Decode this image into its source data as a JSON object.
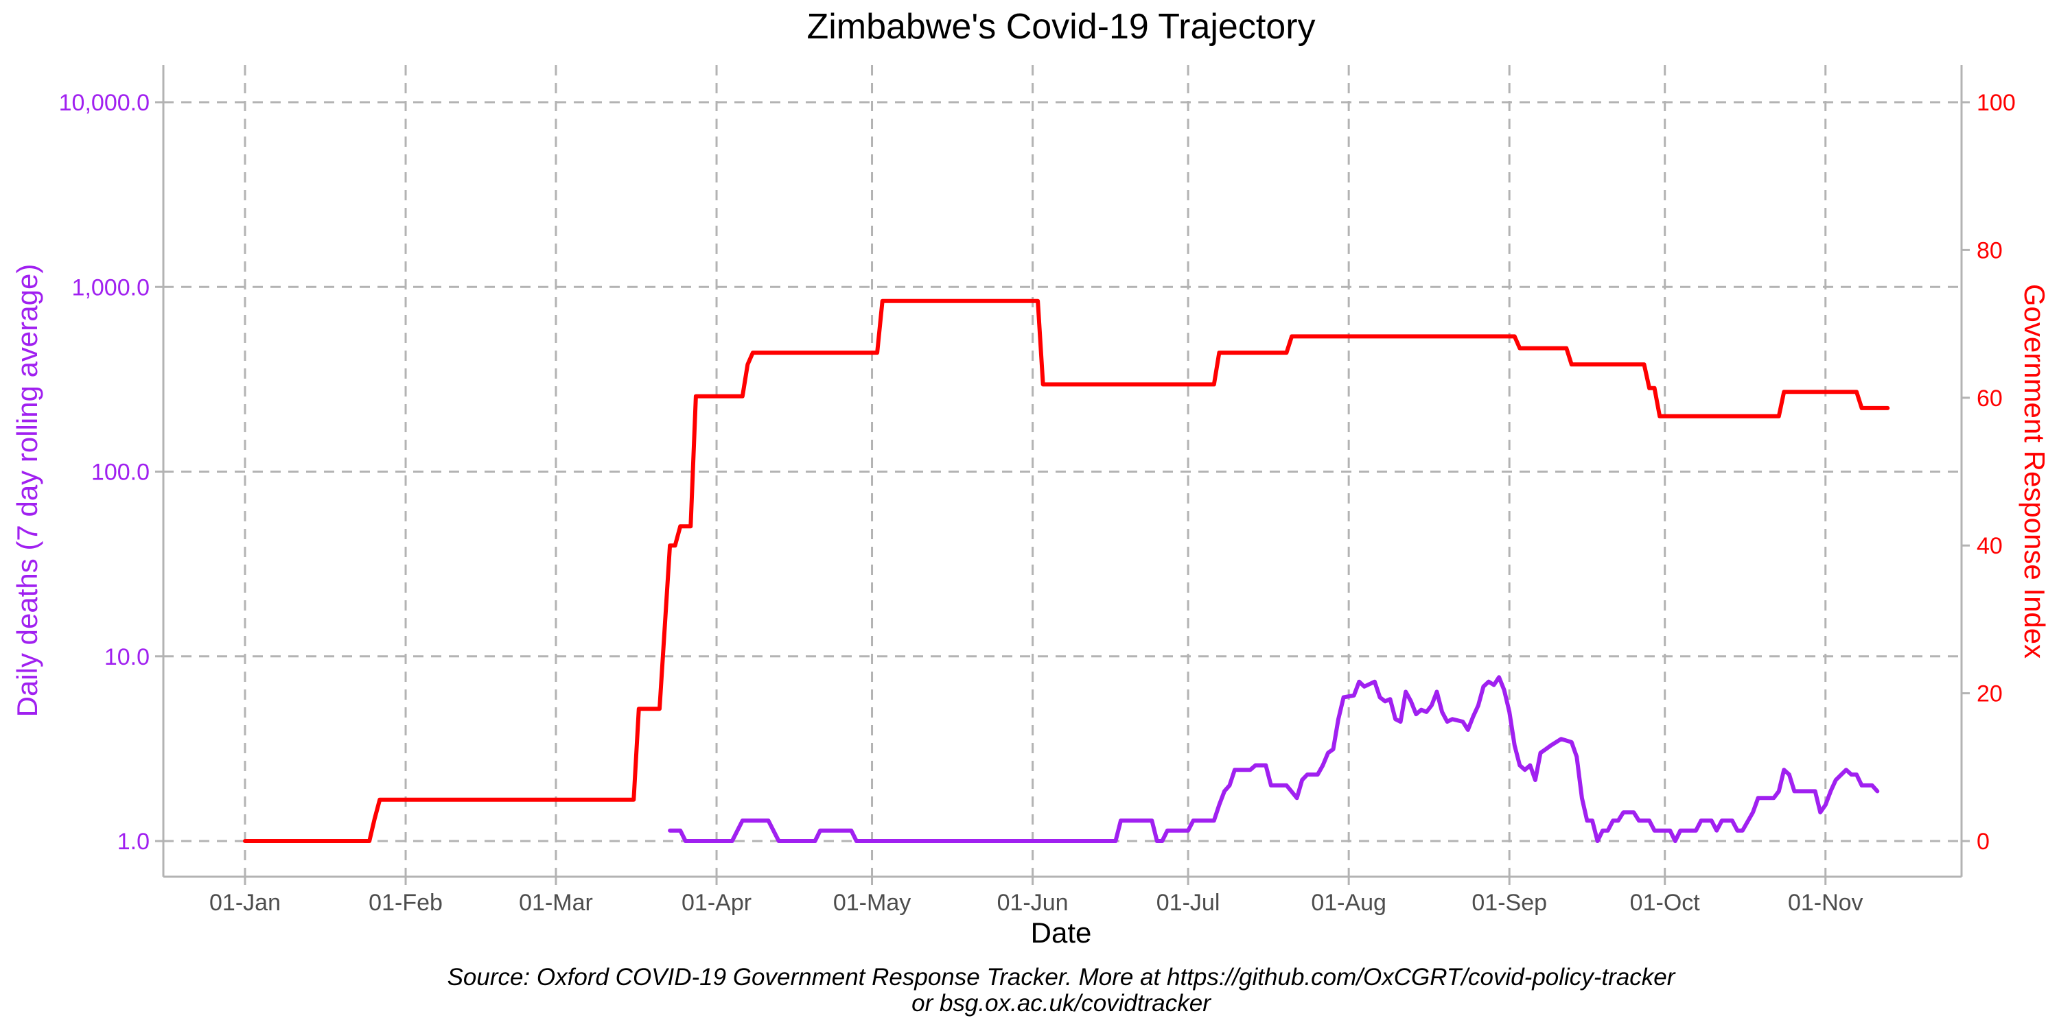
{
  "chart_data": {
    "type": "line",
    "title": "Zimbabwe's Covid-19 Trajectory",
    "xlabel": "Date",
    "ylabel_left": "Daily deaths (7 day rolling average)",
    "ylabel_right": "Government Response Index",
    "left_axis": {
      "scale": "log10",
      "range": [
        1,
        10000
      ],
      "ticks": [
        1,
        10,
        100,
        1000,
        10000
      ],
      "tick_labels": [
        "1.0",
        "10.0",
        "100.0",
        "1,000.0",
        "10,000.0"
      ]
    },
    "right_axis": {
      "scale": "linear",
      "range": [
        0,
        100
      ],
      "ticks": [
        0,
        20,
        40,
        60,
        80,
        100
      ],
      "tick_labels": [
        "0",
        "20",
        "40",
        "60",
        "80",
        "100"
      ]
    },
    "x_axis": {
      "start": "2020-01-01",
      "end": "2020-11-13",
      "ticks": [
        "2020-01-01",
        "2020-02-01",
        "2020-03-01",
        "2020-04-01",
        "2020-05-01",
        "2020-06-01",
        "2020-07-01",
        "2020-08-01",
        "2020-09-01",
        "2020-10-01",
        "2020-11-01"
      ],
      "tick_labels": [
        "01-Jan",
        "01-Feb",
        "01-Mar",
        "01-Apr",
        "01-May",
        "01-Jun",
        "01-Jul",
        "01-Aug",
        "01-Sep",
        "01-Oct",
        "01-Nov"
      ]
    },
    "grid": true,
    "colors": {
      "deaths": "#a020f0",
      "index": "#ff0000"
    },
    "series": [
      {
        "axis": "right",
        "color": "#ff0000",
        "points": [
          [
            "2020-01-01",
            0
          ],
          [
            "2020-01-25",
            0
          ],
          [
            "2020-01-26",
            3
          ],
          [
            "2020-01-27",
            5.6
          ],
          [
            "2020-03-16",
            5.6
          ],
          [
            "2020-03-17",
            17.9
          ],
          [
            "2020-03-21",
            17.9
          ],
          [
            "2020-03-23",
            40
          ],
          [
            "2020-03-24",
            40
          ],
          [
            "2020-03-25",
            42.6
          ],
          [
            "2020-03-27",
            42.6
          ],
          [
            "2020-03-28",
            60.2
          ],
          [
            "2020-04-06",
            60.2
          ],
          [
            "2020-04-07",
            64.5
          ],
          [
            "2020-04-08",
            66.1
          ],
          [
            "2020-05-02",
            66.1
          ],
          [
            "2020-05-03",
            73.1
          ],
          [
            "2020-06-02",
            73.1
          ],
          [
            "2020-06-03",
            61.8
          ],
          [
            "2020-07-06",
            61.8
          ],
          [
            "2020-07-07",
            66.1
          ],
          [
            "2020-07-20",
            66.1
          ],
          [
            "2020-07-21",
            68.3
          ],
          [
            "2020-09-02",
            68.3
          ],
          [
            "2020-09-03",
            66.7
          ],
          [
            "2020-09-12",
            66.7
          ],
          [
            "2020-09-13",
            64.5
          ],
          [
            "2020-09-27",
            64.5
          ],
          [
            "2020-09-28",
            61.3
          ],
          [
            "2020-09-29",
            61.3
          ],
          [
            "2020-09-30",
            57.5
          ],
          [
            "2020-10-23",
            57.5
          ],
          [
            "2020-10-24",
            60.8
          ],
          [
            "2020-11-07",
            60.8
          ],
          [
            "2020-11-08",
            58.6
          ],
          [
            "2020-11-13",
            58.6
          ]
        ]
      },
      {
        "axis": "left",
        "color": "#a020f0",
        "points": [
          [
            "2020-03-23",
            1.14
          ],
          [
            "2020-03-25",
            1.14
          ],
          [
            "2020-03-26",
            1
          ],
          [
            "2020-04-04",
            1
          ],
          [
            "2020-04-06",
            1.29
          ],
          [
            "2020-04-11",
            1.29
          ],
          [
            "2020-04-13",
            1
          ],
          [
            "2020-04-20",
            1
          ],
          [
            "2020-04-21",
            1.14
          ],
          [
            "2020-04-27",
            1.14
          ],
          [
            "2020-04-28",
            1
          ],
          [
            "2020-06-17",
            1
          ],
          [
            "2020-06-18",
            1.29
          ],
          [
            "2020-06-24",
            1.29
          ],
          [
            "2020-06-25",
            1
          ],
          [
            "2020-06-26",
            1
          ],
          [
            "2020-06-27",
            1.14
          ],
          [
            "2020-07-01",
            1.14
          ],
          [
            "2020-07-02",
            1.29
          ],
          [
            "2020-07-06",
            1.29
          ],
          [
            "2020-07-07",
            1.57
          ],
          [
            "2020-07-08",
            1.86
          ],
          [
            "2020-07-09",
            2.0
          ],
          [
            "2020-07-10",
            2.43
          ],
          [
            "2020-07-13",
            2.43
          ],
          [
            "2020-07-14",
            2.57
          ],
          [
            "2020-07-16",
            2.57
          ],
          [
            "2020-07-17",
            2.0
          ],
          [
            "2020-07-20",
            2.0
          ],
          [
            "2020-07-22",
            1.71
          ],
          [
            "2020-07-23",
            2.14
          ],
          [
            "2020-07-24",
            2.29
          ],
          [
            "2020-07-26",
            2.29
          ],
          [
            "2020-07-27",
            2.57
          ],
          [
            "2020-07-28",
            3.0
          ],
          [
            "2020-07-29",
            3.14
          ],
          [
            "2020-07-30",
            4.57
          ],
          [
            "2020-07-31",
            6.0
          ],
          [
            "2020-08-02",
            6.14
          ],
          [
            "2020-08-03",
            7.29
          ],
          [
            "2020-08-04",
            6.86
          ],
          [
            "2020-08-06",
            7.29
          ],
          [
            "2020-08-07",
            6.0
          ],
          [
            "2020-08-08",
            5.71
          ],
          [
            "2020-08-09",
            5.86
          ],
          [
            "2020-08-10",
            4.57
          ],
          [
            "2020-08-11",
            4.43
          ],
          [
            "2020-08-12",
            6.43
          ],
          [
            "2020-08-13",
            5.71
          ],
          [
            "2020-08-14",
            4.86
          ],
          [
            "2020-08-15",
            5.14
          ],
          [
            "2020-08-16",
            5.0
          ],
          [
            "2020-08-17",
            5.43
          ],
          [
            "2020-08-18",
            6.43
          ],
          [
            "2020-08-19",
            5.0
          ],
          [
            "2020-08-20",
            4.43
          ],
          [
            "2020-08-21",
            4.57
          ],
          [
            "2020-08-23",
            4.43
          ],
          [
            "2020-08-24",
            4.0
          ],
          [
            "2020-08-25",
            4.71
          ],
          [
            "2020-08-26",
            5.43
          ],
          [
            "2020-08-27",
            6.86
          ],
          [
            "2020-08-28",
            7.29
          ],
          [
            "2020-08-29",
            7.0
          ],
          [
            "2020-08-30",
            7.71
          ],
          [
            "2020-08-31",
            6.57
          ],
          [
            "2020-09-01",
            5.0
          ],
          [
            "2020-09-02",
            3.29
          ],
          [
            "2020-09-03",
            2.57
          ],
          [
            "2020-09-04",
            2.43
          ],
          [
            "2020-09-05",
            2.57
          ],
          [
            "2020-09-06",
            2.14
          ],
          [
            "2020-09-07",
            3.0
          ],
          [
            "2020-09-08",
            3.14
          ],
          [
            "2020-09-09",
            3.29
          ],
          [
            "2020-09-11",
            3.57
          ],
          [
            "2020-09-13",
            3.43
          ],
          [
            "2020-09-14",
            2.86
          ],
          [
            "2020-09-15",
            1.71
          ],
          [
            "2020-09-16",
            1.29
          ],
          [
            "2020-09-17",
            1.29
          ],
          [
            "2020-09-18",
            1.0
          ],
          [
            "2020-09-19",
            1.14
          ],
          [
            "2020-09-20",
            1.14
          ],
          [
            "2020-09-21",
            1.29
          ],
          [
            "2020-09-22",
            1.29
          ],
          [
            "2020-09-23",
            1.43
          ],
          [
            "2020-09-25",
            1.43
          ],
          [
            "2020-09-26",
            1.29
          ],
          [
            "2020-09-28",
            1.29
          ],
          [
            "2020-09-29",
            1.14
          ],
          [
            "2020-10-02",
            1.14
          ],
          [
            "2020-10-03",
            1.0
          ],
          [
            "2020-10-04",
            1.14
          ],
          [
            "2020-10-07",
            1.14
          ],
          [
            "2020-10-08",
            1.29
          ],
          [
            "2020-10-10",
            1.29
          ],
          [
            "2020-10-11",
            1.14
          ],
          [
            "2020-10-12",
            1.29
          ],
          [
            "2020-10-14",
            1.29
          ],
          [
            "2020-10-15",
            1.14
          ],
          [
            "2020-10-16",
            1.14
          ],
          [
            "2020-10-18",
            1.43
          ],
          [
            "2020-10-19",
            1.71
          ],
          [
            "2020-10-22",
            1.71
          ],
          [
            "2020-10-23",
            1.86
          ],
          [
            "2020-10-24",
            2.43
          ],
          [
            "2020-10-25",
            2.29
          ],
          [
            "2020-10-26",
            1.86
          ],
          [
            "2020-10-30",
            1.86
          ],
          [
            "2020-10-31",
            1.43
          ],
          [
            "2020-11-01",
            1.57
          ],
          [
            "2020-11-02",
            1.86
          ],
          [
            "2020-11-03",
            2.14
          ],
          [
            "2020-11-05",
            2.43
          ],
          [
            "2020-11-06",
            2.29
          ],
          [
            "2020-11-07",
            2.29
          ],
          [
            "2020-11-08",
            2.0
          ],
          [
            "2020-11-10",
            2.0
          ],
          [
            "2020-11-11",
            1.86
          ]
        ]
      }
    ],
    "caption_line1": "Source: Oxford COVID-19 Government Response Tracker. More at https://github.com/OxCGRT/covid-policy-tracker",
    "caption_line2": "or bsg.ox.ac.uk/covidtracker"
  }
}
